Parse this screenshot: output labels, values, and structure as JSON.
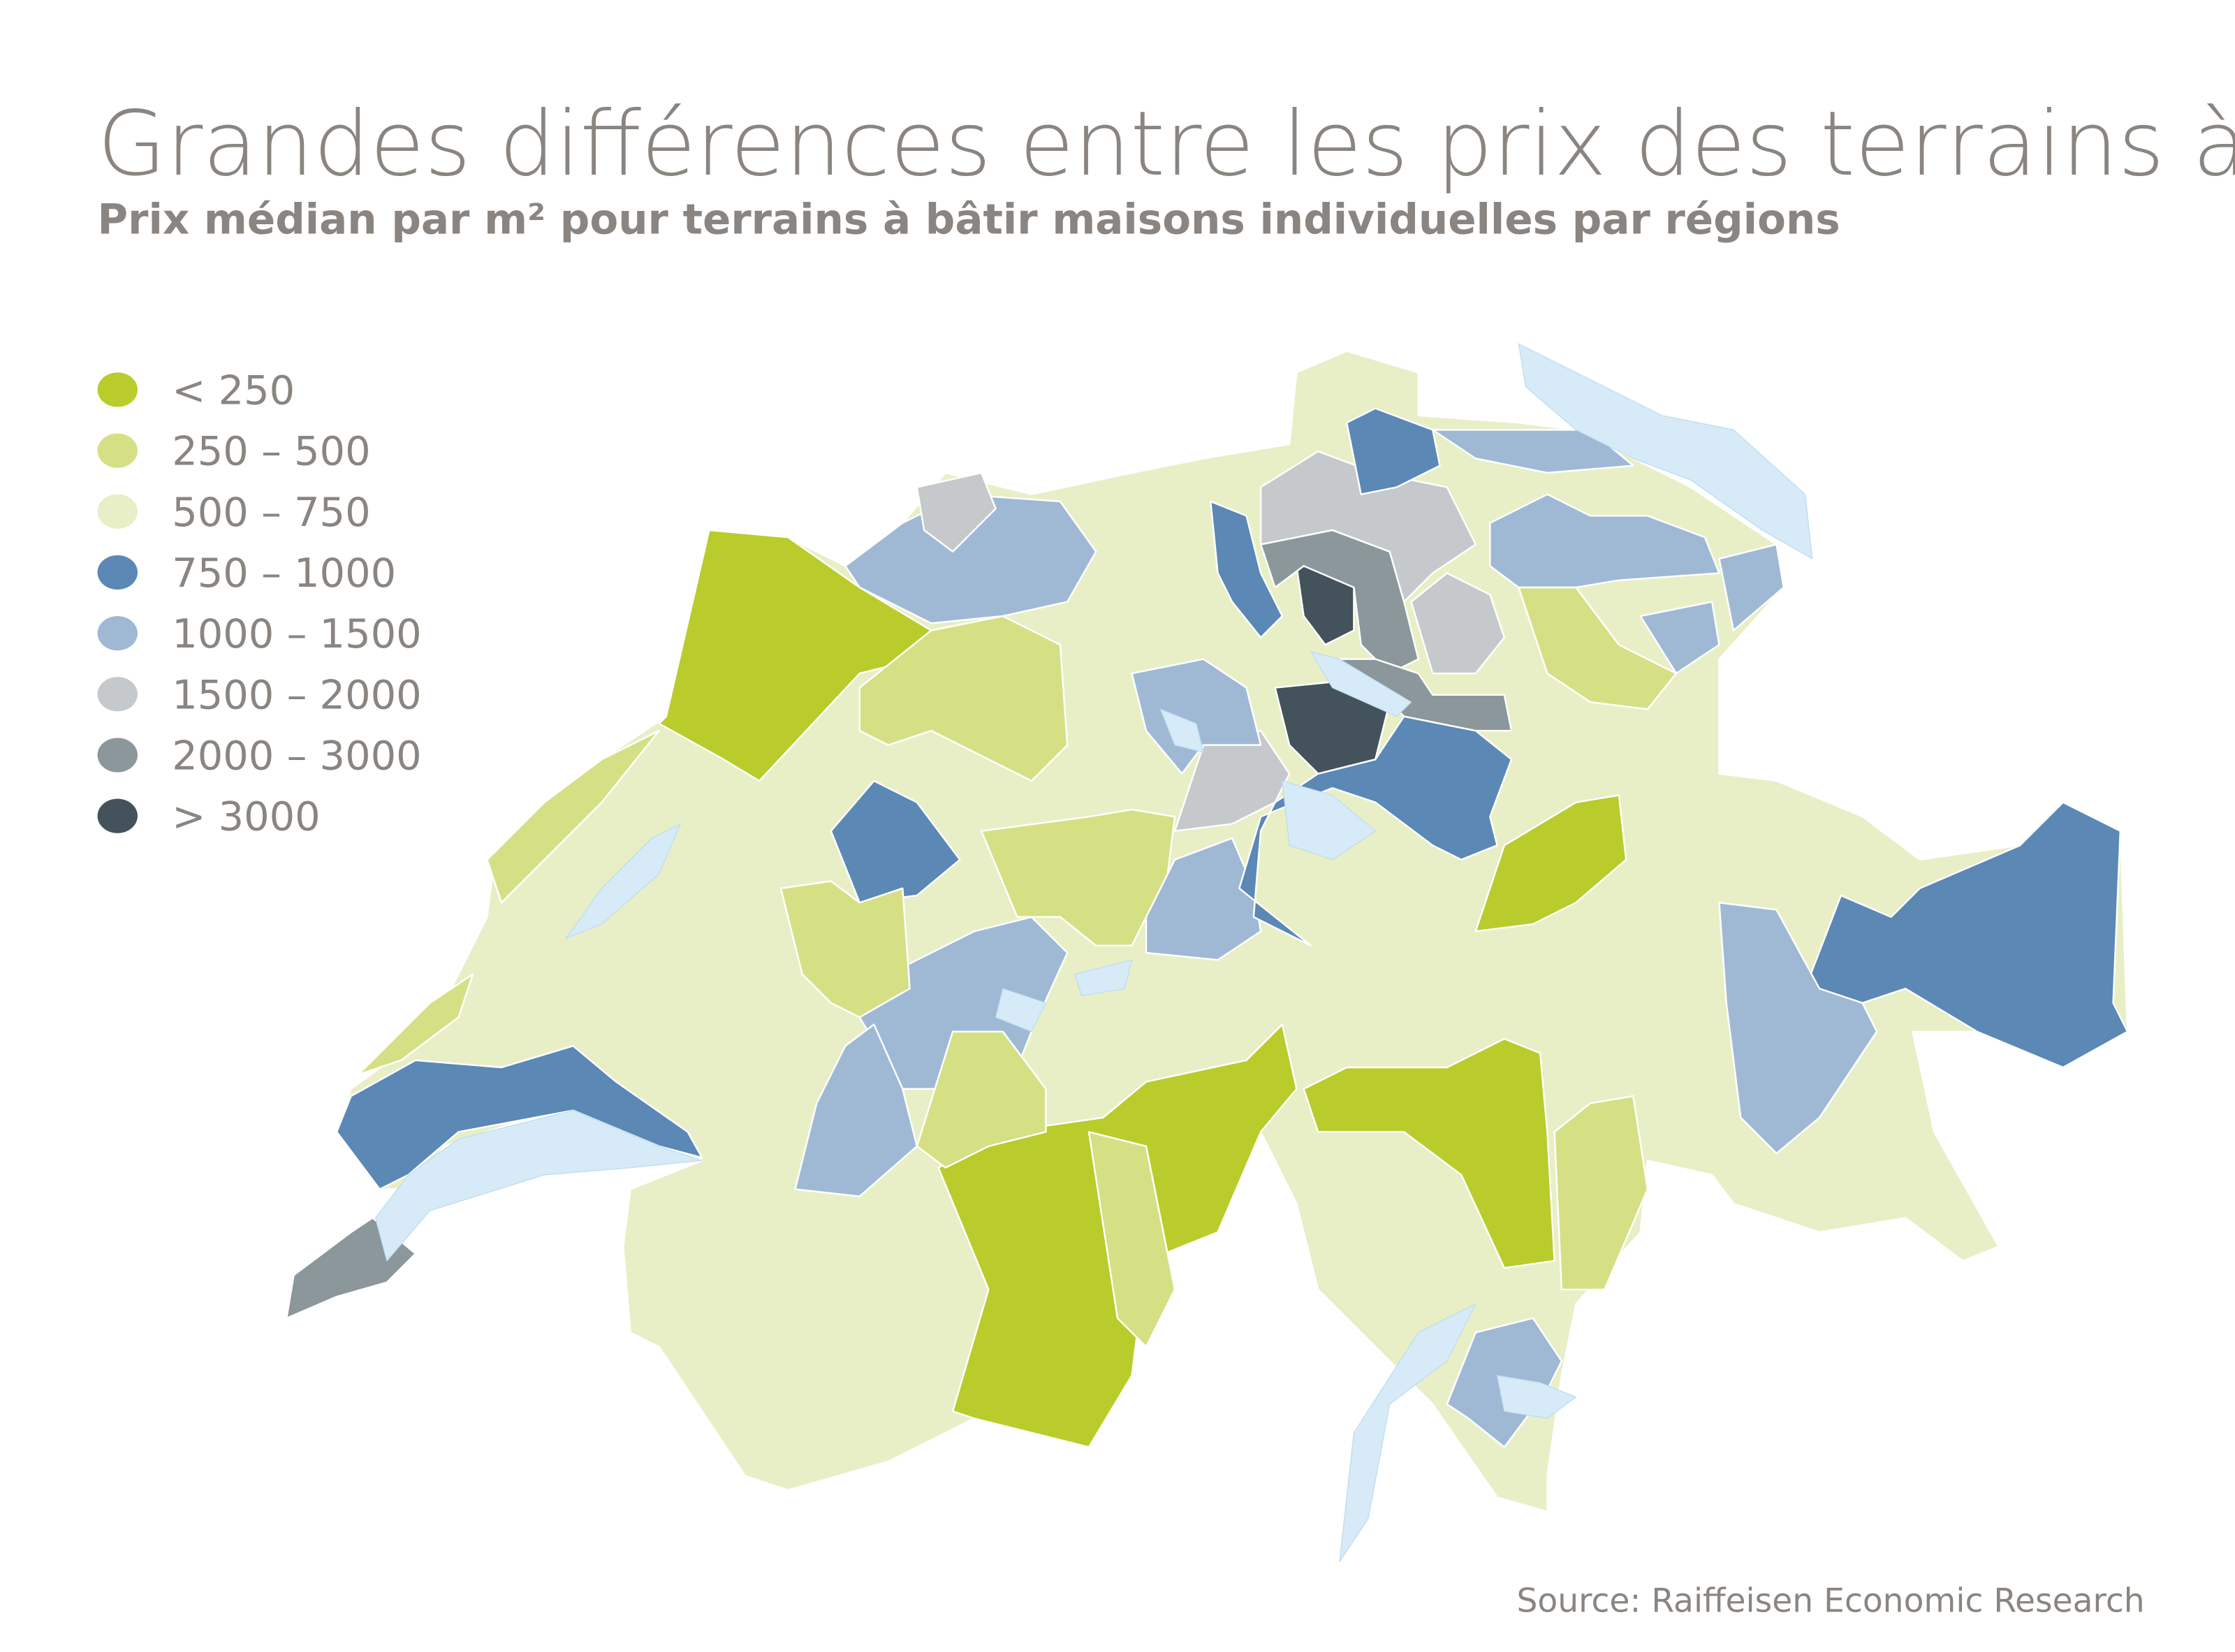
{
  "header": {
    "title": "Grandes différences entre les prix des terrains à bâtir",
    "subtitle": "Prix médian par m² pour terrains à bâtir maisons individuelles par régions"
  },
  "footer": {
    "source": "Source: Raiffeisen Economic Research"
  },
  "chart_data": {
    "type": "choropleth",
    "title": "Grandes différences entre les prix des terrains à bâtir",
    "subtitle": "Prix médian par m² pour terrains à bâtir maisons individuelles par régions",
    "legend_position": "top-left",
    "legend": [
      {
        "label": "< 250",
        "color": "#b9cc2b"
      },
      {
        "label": "250 – 500",
        "color": "#d5e085"
      },
      {
        "label": "500 – 750",
        "color": "#e8efc6"
      },
      {
        "label": "750 – 1000",
        "color": "#5b88b5"
      },
      {
        "label": "1000 – 1500",
        "color": "#9fb9d5"
      },
      {
        "label": "1500 – 2000",
        "color": "#c6c9cb"
      },
      {
        "label": "2000 – 3000",
        "color": "#8b979b"
      },
      {
        "label": "> 3000",
        "color": "#43525b"
      }
    ],
    "region_categories": [
      2,
      0,
      4,
      5,
      3,
      6,
      0,
      0,
      1,
      0,
      3,
      4,
      4,
      3,
      4,
      4,
      4,
      3,
      5,
      4,
      3,
      7,
      7,
      6,
      6,
      5,
      5,
      3,
      4,
      1,
      4,
      4,
      4,
      1,
      1,
      1,
      1,
      1,
      1,
      1
    ],
    "lake_color": "#d6eaf7"
  }
}
